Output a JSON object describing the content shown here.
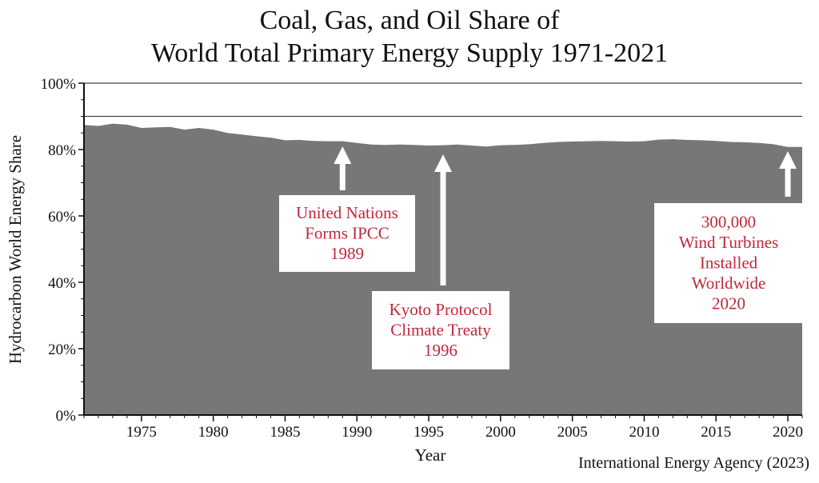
{
  "title": {
    "line1": "Coal, Gas, and Oil Share of",
    "line2": "World Total Primary Energy Supply 1971-2021"
  },
  "source": "International Energy Agency (2023)",
  "chart_data": {
    "type": "area",
    "title": "Coal, Gas, and Oil Share of World Total Primary Energy Supply 1971-2021",
    "xlabel": "Year",
    "ylabel": "Hydrocarbon World Energy Share",
    "xlim": [
      1971,
      2021
    ],
    "ylim": [
      0,
      100
    ],
    "x_ticks": [
      1975,
      1980,
      1985,
      1990,
      1995,
      2000,
      2005,
      2010,
      2015,
      2020
    ],
    "y_ticks": [
      0,
      20,
      40,
      60,
      80,
      100
    ],
    "y_tick_labels": [
      "0%",
      "20%",
      "40%",
      "60%",
      "80%",
      "100%"
    ],
    "reference_lines": [
      100,
      90
    ],
    "fill_color": "#777777",
    "grid": false,
    "x": [
      1971,
      1972,
      1973,
      1974,
      1975,
      1976,
      1977,
      1978,
      1979,
      1980,
      1981,
      1982,
      1983,
      1984,
      1985,
      1986,
      1987,
      1988,
      1989,
      1990,
      1991,
      1992,
      1993,
      1994,
      1995,
      1996,
      1997,
      1998,
      1999,
      2000,
      2001,
      2002,
      2003,
      2004,
      2005,
      2006,
      2007,
      2008,
      2009,
      2010,
      2011,
      2012,
      2013,
      2014,
      2015,
      2016,
      2017,
      2018,
      2019,
      2020,
      2021
    ],
    "values": [
      87.4,
      87.1,
      87.8,
      87.5,
      86.5,
      86.7,
      86.8,
      86.0,
      86.5,
      86.0,
      85.0,
      84.5,
      84.0,
      83.6,
      82.8,
      82.9,
      82.6,
      82.5,
      82.5,
      82.0,
      81.5,
      81.4,
      81.5,
      81.4,
      81.2,
      81.3,
      81.5,
      81.2,
      80.9,
      81.3,
      81.4,
      81.6,
      82.0,
      82.3,
      82.4,
      82.5,
      82.6,
      82.5,
      82.4,
      82.5,
      83.0,
      83.1,
      82.9,
      82.8,
      82.6,
      82.3,
      82.2,
      82.0,
      81.6,
      80.8,
      80.8
    ],
    "annotations": [
      {
        "text_lines": [
          "United Nations",
          "Forms IPCC",
          "1989"
        ],
        "x": 1989
      },
      {
        "text_lines": [
          "Kyoto Protocol",
          "Climate Treaty",
          "1996"
        ],
        "x": 1996
      },
      {
        "text_lines": [
          "300,000",
          "Wind Turbines",
          "Installed",
          "Worldwide",
          "2020"
        ],
        "x": 2020
      }
    ],
    "annotation_text_color": "#c0283a",
    "arrow_color": "#ffffff"
  }
}
